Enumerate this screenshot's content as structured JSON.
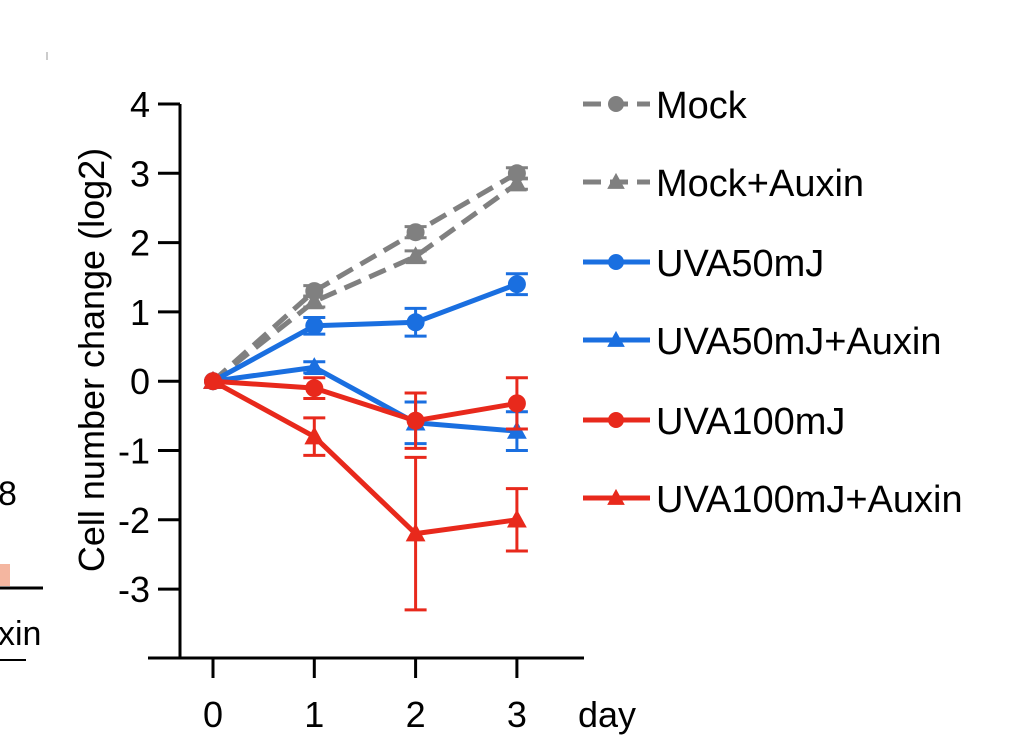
{
  "chart_data": {
    "type": "line",
    "title": "",
    "ylabel": "Cell number change (log2)",
    "xlabel": "day",
    "x": [
      0,
      1,
      2,
      3
    ],
    "xticks": [
      "0",
      "1",
      "2",
      "3"
    ],
    "yticks": [
      4,
      3,
      2,
      1,
      0,
      -1,
      -2,
      -3
    ],
    "ylim": [
      -4,
      4
    ],
    "xlim": [
      -0.6,
      3.65
    ],
    "legend_position": "right",
    "series": [
      {
        "name": "Mock",
        "color": "#808080",
        "marker": "circle",
        "dashed": true,
        "values": [
          0,
          1.3,
          2.15,
          3.0
        ],
        "errors": [
          0,
          0.08,
          0.08,
          0.08
        ]
      },
      {
        "name": "Mock+Auxin",
        "color": "#808080",
        "marker": "triangle",
        "dashed": true,
        "values": [
          0,
          1.15,
          1.8,
          2.85
        ],
        "errors": [
          0,
          0.08,
          0.08,
          0.08
        ]
      },
      {
        "name": "UVA50mJ",
        "color": "#1a6fe0",
        "marker": "circle",
        "dashed": false,
        "values": [
          0,
          0.8,
          0.85,
          1.4
        ],
        "errors": [
          0,
          0.12,
          0.2,
          0.15
        ]
      },
      {
        "name": "UVA50mJ+Auxin",
        "color": "#1a6fe0",
        "marker": "triangle",
        "dashed": false,
        "values": [
          0,
          0.2,
          -0.6,
          -0.72
        ],
        "errors": [
          0,
          0.08,
          0.3,
          0.28
        ]
      },
      {
        "name": "UVA100mJ",
        "color": "#e8291c",
        "marker": "circle",
        "dashed": false,
        "values": [
          0,
          -0.1,
          -0.57,
          -0.32
        ],
        "errors": [
          0,
          0.15,
          0.4,
          0.37
        ]
      },
      {
        "name": "UVA100mJ+Auxin",
        "color": "#e8291c",
        "marker": "triangle",
        "dashed": false,
        "values": [
          0,
          -0.8,
          -2.2,
          -2.0
        ],
        "errors": [
          0,
          0.27,
          1.1,
          0.45
        ]
      }
    ]
  },
  "fragments": {
    "left_number": "8",
    "left_label": "xin"
  }
}
